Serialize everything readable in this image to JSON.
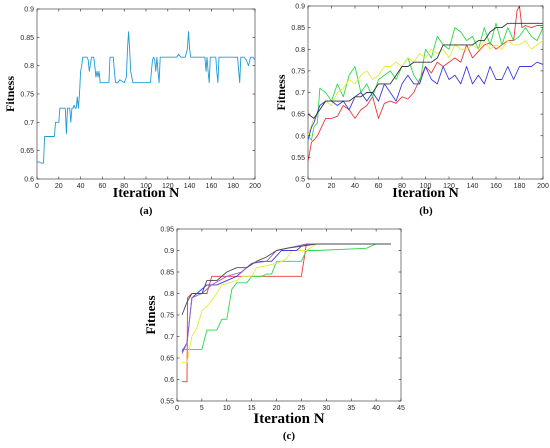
{
  "chart_data": [
    {
      "type": "line",
      "panel_label": "(a)",
      "xlabel": "Iteration N",
      "ylabel": "Fitness",
      "xlim": [
        0,
        200
      ],
      "ylim": [
        0.6,
        0.9
      ],
      "xticks": [
        "0",
        "20",
        "40",
        "60",
        "80",
        "100",
        "120",
        "140",
        "160",
        "180",
        "200"
      ],
      "yticks": [
        "0.6",
        "0.65",
        "0.7",
        "0.75",
        "0.8",
        "0.85",
        "0.9"
      ],
      "grid": false,
      "series": [
        {
          "color": "#1f9bd7",
          "x": [
            0,
            2,
            4,
            6,
            7,
            12,
            16,
            17,
            20,
            21,
            22,
            24,
            26,
            27,
            28,
            30,
            31,
            32,
            33,
            34,
            35,
            36,
            37,
            38,
            39,
            40,
            41,
            42,
            43,
            44,
            45,
            46,
            47,
            48,
            50,
            52,
            53,
            54,
            55,
            56,
            57,
            58,
            60,
            66,
            67,
            68,
            69,
            70,
            71,
            72,
            74,
            76,
            80,
            82,
            83,
            84,
            85,
            86,
            88,
            90,
            92,
            100,
            104,
            105,
            106,
            107,
            108,
            109,
            110,
            111,
            112,
            113,
            114,
            116,
            118,
            120,
            122,
            124,
            126,
            128,
            130,
            132,
            136,
            138,
            139,
            140,
            141,
            142,
            144,
            148,
            152,
            154,
            155,
            156,
            157,
            158,
            159,
            160,
            162,
            164,
            165,
            166,
            167,
            168,
            170,
            172,
            174,
            176,
            178,
            180,
            182,
            184,
            185,
            186,
            187,
            188,
            190,
            192,
            194,
            196,
            198,
            200
          ],
          "y": [
            0.63,
            0.63,
            0.628,
            0.628,
            0.675,
            0.675,
            0.675,
            0.7,
            0.7,
            0.725,
            0.725,
            0.725,
            0.725,
            0.68,
            0.725,
            0.725,
            0.7,
            0.725,
            0.725,
            0.73,
            0.725,
            0.725,
            0.745,
            0.725,
            0.75,
            0.79,
            0.8,
            0.815,
            0.815,
            0.815,
            0.815,
            0.815,
            0.81,
            0.79,
            0.815,
            0.815,
            0.8,
            0.78,
            0.79,
            0.78,
            0.79,
            0.77,
            0.77,
            0.77,
            0.815,
            0.815,
            0.815,
            0.815,
            0.79,
            0.77,
            0.77,
            0.775,
            0.77,
            0.78,
            0.83,
            0.86,
            0.83,
            0.79,
            0.77,
            0.77,
            0.77,
            0.77,
            0.77,
            0.79,
            0.81,
            0.815,
            0.81,
            0.79,
            0.815,
            0.79,
            0.77,
            0.815,
            0.815,
            0.815,
            0.815,
            0.815,
            0.815,
            0.815,
            0.815,
            0.815,
            0.82,
            0.815,
            0.815,
            0.83,
            0.86,
            0.83,
            0.815,
            0.815,
            0.815,
            0.815,
            0.815,
            0.815,
            0.79,
            0.815,
            0.79,
            0.77,
            0.815,
            0.815,
            0.815,
            0.815,
            0.79,
            0.77,
            0.815,
            0.815,
            0.815,
            0.815,
            0.815,
            0.815,
            0.815,
            0.815,
            0.815,
            0.815,
            0.79,
            0.77,
            0.815,
            0.815,
            0.815,
            0.81,
            0.8,
            0.815,
            0.815,
            0.81
          ]
        }
      ]
    },
    {
      "type": "line",
      "panel_label": "(b)",
      "xlabel": "Iteration N",
      "ylabel": "Fitness",
      "xlim": [
        0,
        200
      ],
      "ylim": [
        0.5,
        0.9
      ],
      "xticks": [
        "0",
        "20",
        "40",
        "60",
        "80",
        "100",
        "120",
        "140",
        "160",
        "180",
        "200"
      ],
      "yticks": [
        "0.5",
        "0.55",
        "0.6",
        "0.65",
        "0.7",
        "0.75",
        "0.8",
        "0.85",
        "0.9"
      ],
      "grid": false,
      "series": [
        {
          "color": "#e8383b",
          "x": [
            0,
            3,
            5,
            8,
            15,
            20,
            25,
            30,
            35,
            40,
            45,
            50,
            55,
            60,
            65,
            70,
            75,
            80,
            85,
            90,
            95,
            100,
            105,
            110,
            115,
            120,
            125,
            130,
            135,
            140,
            145,
            150,
            155,
            160,
            165,
            170,
            175,
            178,
            180,
            182,
            185,
            190,
            195,
            200
          ],
          "y": [
            0.54,
            0.585,
            0.59,
            0.6,
            0.64,
            0.64,
            0.645,
            0.67,
            0.66,
            0.64,
            0.66,
            0.67,
            0.69,
            0.64,
            0.675,
            0.68,
            0.675,
            0.69,
            0.685,
            0.7,
            0.73,
            0.76,
            0.745,
            0.77,
            0.76,
            0.77,
            0.78,
            0.77,
            0.81,
            0.78,
            0.795,
            0.81,
            0.815,
            0.8,
            0.81,
            0.82,
            0.82,
            0.89,
            0.9,
            0.85,
            0.855,
            0.85,
            0.855,
            0.855
          ]
        },
        {
          "color": "#2bd94b",
          "x": [
            0,
            3,
            5,
            8,
            10,
            15,
            20,
            25,
            30,
            35,
            40,
            45,
            50,
            55,
            60,
            65,
            70,
            75,
            80,
            85,
            90,
            95,
            100,
            105,
            110,
            115,
            120,
            125,
            130,
            135,
            140,
            145,
            150,
            155,
            160,
            165,
            170,
            175,
            180,
            185,
            190,
            195,
            200
          ],
          "y": [
            0.6,
            0.59,
            0.62,
            0.63,
            0.71,
            0.7,
            0.68,
            0.72,
            0.69,
            0.74,
            0.76,
            0.7,
            0.72,
            0.69,
            0.73,
            0.74,
            0.75,
            0.73,
            0.76,
            0.78,
            0.74,
            0.72,
            0.8,
            0.78,
            0.83,
            0.81,
            0.8,
            0.85,
            0.84,
            0.82,
            0.83,
            0.8,
            0.85,
            0.81,
            0.86,
            0.81,
            0.85,
            0.82,
            0.83,
            0.85,
            0.83,
            0.82,
            0.85
          ]
        },
        {
          "color": "#e8e83a",
          "x": [
            0,
            5,
            10,
            15,
            20,
            25,
            30,
            35,
            40,
            45,
            50,
            55,
            60,
            65,
            70,
            75,
            80,
            85,
            90,
            95,
            100,
            105,
            110,
            115,
            120,
            125,
            130,
            135,
            140,
            145,
            150,
            155,
            160,
            165,
            170,
            175,
            180,
            185,
            190,
            195,
            200
          ],
          "y": [
            0.6,
            0.64,
            0.66,
            0.68,
            0.67,
            0.7,
            0.71,
            0.73,
            0.72,
            0.74,
            0.75,
            0.73,
            0.74,
            0.76,
            0.76,
            0.77,
            0.76,
            0.78,
            0.77,
            0.79,
            0.78,
            0.8,
            0.79,
            0.8,
            0.78,
            0.81,
            0.8,
            0.8,
            0.81,
            0.8,
            0.82,
            0.8,
            0.81,
            0.8,
            0.82,
            0.81,
            0.81,
            0.82,
            0.8,
            0.81,
            0.82
          ]
        },
        {
          "color": "#3a3adf",
          "x": [
            0,
            3,
            5,
            10,
            15,
            20,
            25,
            30,
            35,
            40,
            45,
            50,
            55,
            60,
            65,
            70,
            75,
            80,
            85,
            90,
            95,
            100,
            105,
            110,
            115,
            120,
            125,
            130,
            135,
            140,
            145,
            150,
            155,
            160,
            165,
            170,
            175,
            180,
            185,
            190,
            195,
            200
          ],
          "y": [
            0.59,
            0.62,
            0.63,
            0.67,
            0.68,
            0.68,
            0.67,
            0.68,
            0.66,
            0.69,
            0.7,
            0.68,
            0.7,
            0.68,
            0.72,
            0.7,
            0.68,
            0.72,
            0.74,
            0.72,
            0.72,
            0.76,
            0.73,
            0.72,
            0.76,
            0.73,
            0.74,
            0.72,
            0.76,
            0.72,
            0.74,
            0.72,
            0.76,
            0.73,
            0.73,
            0.76,
            0.73,
            0.76,
            0.76,
            0.76,
            0.77,
            0.765
          ]
        },
        {
          "color": "#333333",
          "x": [
            0,
            5,
            10,
            15,
            20,
            25,
            30,
            35,
            40,
            45,
            50,
            55,
            60,
            65,
            70,
            75,
            80,
            85,
            90,
            95,
            100,
            105,
            110,
            115,
            120,
            125,
            130,
            135,
            140,
            145,
            150,
            155,
            160,
            165,
            170,
            175,
            180,
            185,
            190,
            195,
            200
          ],
          "y": [
            0.65,
            0.64,
            0.66,
            0.68,
            0.68,
            0.68,
            0.68,
            0.68,
            0.69,
            0.69,
            0.7,
            0.7,
            0.72,
            0.72,
            0.72,
            0.74,
            0.76,
            0.76,
            0.77,
            0.77,
            0.77,
            0.77,
            0.78,
            0.81,
            0.81,
            0.81,
            0.81,
            0.81,
            0.81,
            0.82,
            0.82,
            0.84,
            0.85,
            0.85,
            0.86,
            0.86,
            0.86,
            0.86,
            0.86,
            0.86,
            0.86
          ]
        }
      ]
    },
    {
      "type": "line",
      "panel_label": "(c)",
      "xlabel": "Iteration N",
      "ylabel": "Fitness",
      "xlim": [
        0,
        45
      ],
      "ylim": [
        0.55,
        0.95
      ],
      "xticks": [
        "0",
        "5",
        "10",
        "15",
        "20",
        "25",
        "30",
        "35",
        "40",
        "45"
      ],
      "yticks": [
        "0.55",
        "0.6",
        "0.65",
        "0.7",
        "0.75",
        "0.8",
        "0.85",
        "0.9",
        "0.95"
      ],
      "grid": false,
      "series": [
        {
          "color": "#e8383b",
          "x": [
            1,
            2,
            2.1,
            3,
            6,
            7,
            13,
            18,
            25,
            26,
            43
          ],
          "y": [
            0.595,
            0.595,
            0.79,
            0.8,
            0.8,
            0.84,
            0.84,
            0.84,
            0.84,
            0.915,
            0.915
          ]
        },
        {
          "color": "#2bd94b",
          "x": [
            1,
            2,
            5,
            6,
            7,
            8,
            9,
            10,
            11,
            12,
            14,
            15,
            17,
            18,
            19,
            20,
            25,
            26,
            28,
            38,
            40,
            43
          ],
          "y": [
            0.67,
            0.67,
            0.67,
            0.715,
            0.715,
            0.715,
            0.74,
            0.74,
            0.81,
            0.825,
            0.825,
            0.84,
            0.84,
            0.845,
            0.845,
            0.875,
            0.875,
            0.9,
            0.9,
            0.905,
            0.915,
            0.915
          ]
        },
        {
          "color": "#e8e83a",
          "x": [
            1,
            2,
            3,
            4,
            5,
            6,
            8,
            9,
            12,
            13,
            15,
            16,
            20,
            22,
            23,
            26,
            28,
            43
          ],
          "y": [
            0.64,
            0.64,
            0.7,
            0.72,
            0.76,
            0.77,
            0.8,
            0.82,
            0.83,
            0.84,
            0.84,
            0.86,
            0.87,
            0.88,
            0.9,
            0.9,
            0.915,
            0.915
          ]
        },
        {
          "color": "#3a3adf",
          "x": [
            1,
            2,
            3,
            4,
            6,
            8,
            12,
            13,
            15,
            17,
            19,
            21,
            24,
            25,
            27,
            43
          ],
          "y": [
            0.665,
            0.685,
            0.79,
            0.8,
            0.82,
            0.82,
            0.84,
            0.85,
            0.87,
            0.875,
            0.875,
            0.9,
            0.9,
            0.91,
            0.915,
            0.915
          ]
        },
        {
          "color": "#9b5cc4",
          "x": [
            1,
            2,
            3,
            5,
            7,
            10,
            13,
            15,
            18,
            20,
            24,
            26,
            43
          ],
          "y": [
            0.66,
            0.685,
            0.79,
            0.8,
            0.82,
            0.84,
            0.85,
            0.87,
            0.875,
            0.9,
            0.91,
            0.915,
            0.915
          ]
        },
        {
          "color": "#4a4a4a",
          "x": [
            1,
            2,
            3,
            5,
            6,
            8,
            10,
            12,
            14,
            16,
            18,
            20,
            22,
            25,
            28,
            43
          ],
          "y": [
            0.75,
            0.78,
            0.8,
            0.8,
            0.83,
            0.83,
            0.85,
            0.86,
            0.86,
            0.875,
            0.885,
            0.9,
            0.905,
            0.91,
            0.915,
            0.915
          ]
        }
      ]
    }
  ]
}
